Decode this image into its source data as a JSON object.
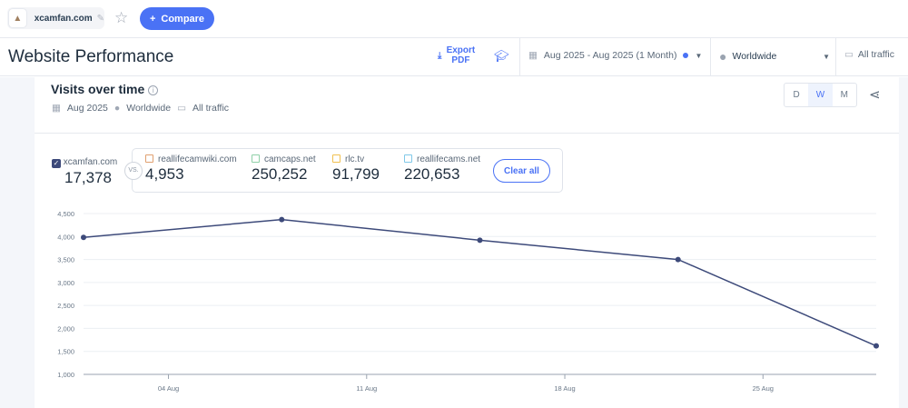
{
  "topbar": {
    "site": "xcamfan.com",
    "compare": "Compare"
  },
  "header": {
    "title": "Website Performance",
    "export": "Export PDF",
    "date_range": "Aug 2025 - Aug 2025 (1 Month)",
    "region": "Worldwide",
    "traffic": "All traffic"
  },
  "widget": {
    "title": "Visits over time",
    "meta_date": "Aug 2025",
    "meta_region": "Worldwide",
    "meta_traffic": "All traffic",
    "granularity": [
      "D",
      "W",
      "M"
    ],
    "selected_granularity": "W"
  },
  "legend": {
    "main": {
      "name": "xcamfan.com",
      "value": "17,378"
    },
    "vs": "VS.",
    "clear": "Clear all",
    "competitors": [
      {
        "name": "reallifecamwiki.com",
        "value": "4,953",
        "color": "#e0a070"
      },
      {
        "name": "camcaps.net",
        "value": "250,252",
        "color": "#8fd0a8"
      },
      {
        "name": "rlc.tv",
        "value": "91,799",
        "color": "#f0c050"
      },
      {
        "name": "reallifecams.net",
        "value": "220,653",
        "color": "#80c8e8"
      }
    ]
  },
  "chart_data": {
    "type": "line",
    "series": [
      {
        "name": "xcamfan.com",
        "color": "#3d4a7a",
        "x": [
          "01 Aug",
          "08 Aug",
          "15 Aug",
          "22 Aug",
          "29 Aug"
        ],
        "values": [
          3980,
          4370,
          3920,
          3500,
          1620
        ]
      }
    ],
    "x_ticks": [
      "04 Aug",
      "11 Aug",
      "18 Aug",
      "25 Aug"
    ],
    "y_ticks": [
      "1,000",
      "1,500",
      "2,000",
      "2,500",
      "3,000",
      "3,500",
      "4,000",
      "4,500"
    ],
    "ylim": [
      1000,
      4500
    ],
    "grid": true
  }
}
